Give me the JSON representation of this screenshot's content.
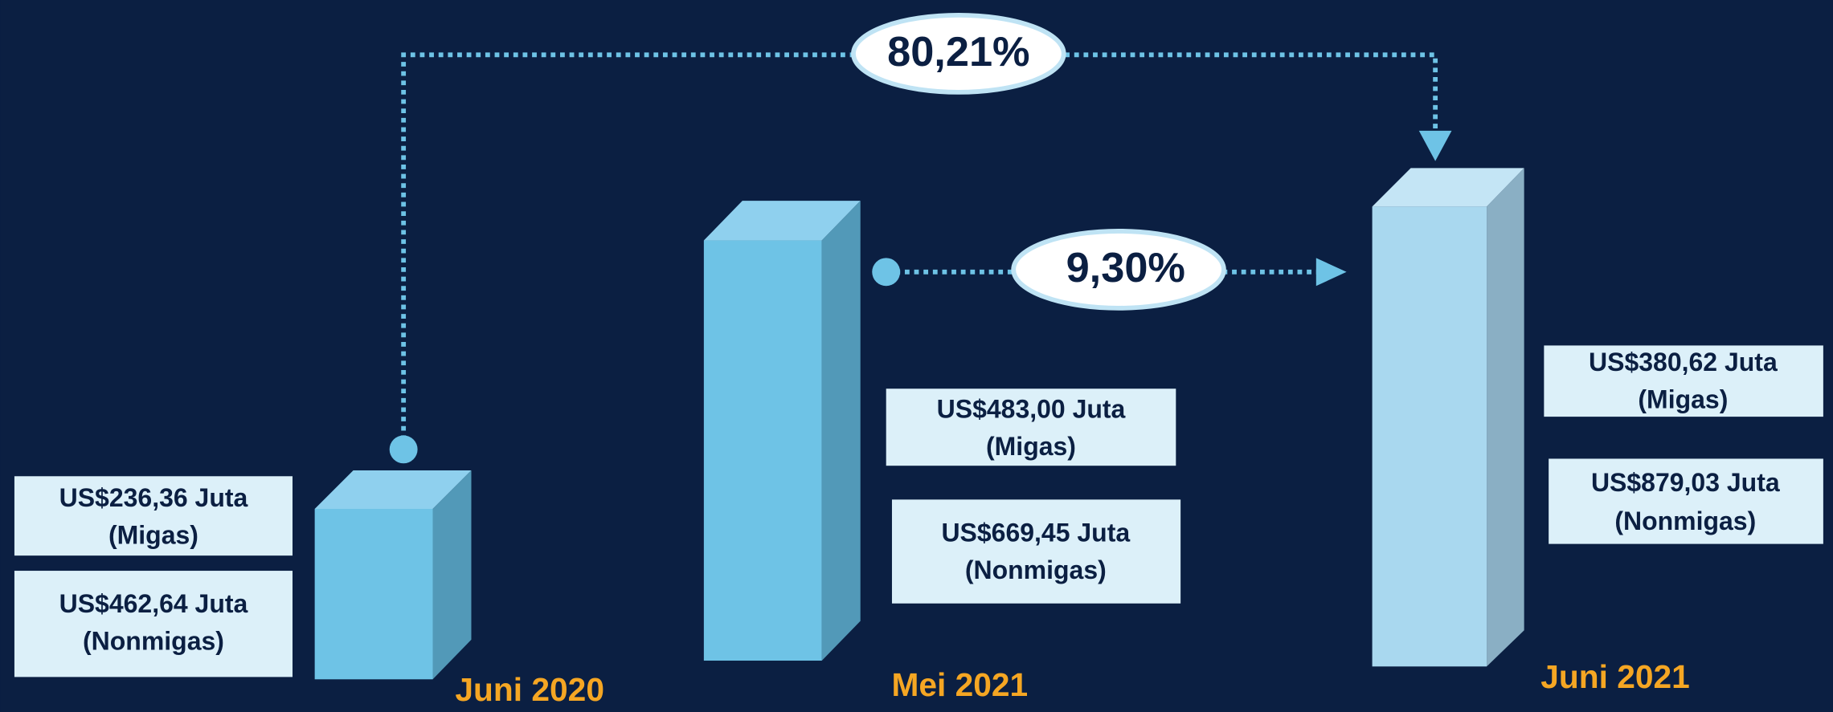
{
  "changes": [
    {
      "label": "80,21%"
    },
    {
      "label": "9,30%"
    }
  ],
  "periods": [
    {
      "label": "Juni 2020",
      "migas": "US$236,36 Juta",
      "migas_note": "(Migas)",
      "nonmigas": "US$462,64 Juta",
      "nonmigas_note": "(Nonmigas)"
    },
    {
      "label": "Mei 2021",
      "migas": "US$483,00 Juta",
      "migas_note": "(Migas)",
      "nonmigas": "US$669,45 Juta",
      "nonmigas_note": "(Nonmigas)"
    },
    {
      "label": "Juni 2021",
      "migas": "US$380,62 Juta",
      "migas_note": "(Migas)",
      "nonmigas": "US$879,03 Juta",
      "nonmigas_note": "(Nonmigas)"
    }
  ]
}
